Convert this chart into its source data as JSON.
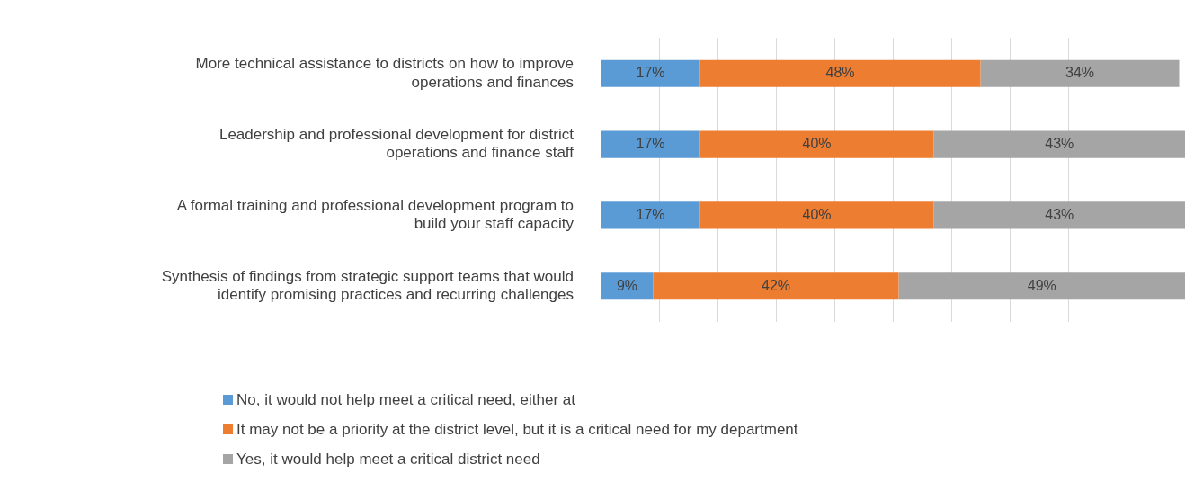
{
  "chart_data": {
    "type": "bar",
    "orientation": "horizontal",
    "stacked": true,
    "categories": [
      "More technical assistance to districts on how to improve operations and finances",
      "Leadership and professional development for district operations and finance staff",
      "A formal training and professional development program to build your staff capacity",
      "Synthesis of findings from strategic support teams that would identify promising practices and recurring challenges"
    ],
    "series": [
      {
        "name": "No, it would not help meet a critical need, either at",
        "color": "#5b9bd5",
        "values": [
          17,
          17,
          17,
          9
        ],
        "value_labels": [
          "17%",
          "17%",
          "17%",
          "9%"
        ]
      },
      {
        "name": "It may not be a priority at the district level, but it is a critical need for my department",
        "color": "#ed7d31",
        "values": [
          48,
          40,
          40,
          42
        ],
        "value_labels": [
          "48%",
          "40%",
          "40%",
          "42%"
        ]
      },
      {
        "name": "Yes, it would help meet a critical district need",
        "color": "#a5a5a5",
        "values": [
          34,
          43,
          43,
          49
        ],
        "value_labels": [
          "34%",
          "43%",
          "43%",
          "49%"
        ]
      }
    ],
    "tick_labels": "y",
    "grid": "x",
    "legend": "bottom"
  }
}
